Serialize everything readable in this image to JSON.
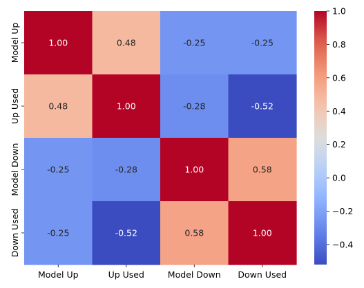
{
  "chart_data": {
    "type": "heatmap",
    "title": "",
    "xlabel": "",
    "ylabel": "",
    "x": [
      "Model Up",
      "Up Used",
      "Model Down",
      "Down Used"
    ],
    "y": [
      "Model Up",
      "Up Used",
      "Model Down",
      "Down Used"
    ],
    "values": [
      [
        1.0,
        0.48,
        -0.25,
        -0.25
      ],
      [
        0.48,
        1.0,
        -0.28,
        -0.52
      ],
      [
        -0.25,
        -0.28,
        1.0,
        0.58
      ],
      [
        -0.25,
        -0.52,
        0.58,
        1.0
      ]
    ],
    "cell_labels": [
      [
        "1.00",
        "0.48",
        "-0.25",
        "-0.25"
      ],
      [
        "0.48",
        "1.00",
        "-0.28",
        "-0.52"
      ],
      [
        "-0.25",
        "-0.28",
        "1.00",
        "0.58"
      ],
      [
        "-0.25",
        "-0.52",
        "0.58",
        "1.00"
      ]
    ],
    "colormap": "coolwarm",
    "vmin": -0.52,
    "vmax": 1.0,
    "colorbar": {
      "ticks": [
        -0.4,
        -0.2,
        0.0,
        0.2,
        0.4,
        0.6,
        0.8,
        1.0
      ],
      "tick_labels": [
        "−0.4",
        "−0.2",
        "0.0",
        "0.2",
        "0.4",
        "0.6",
        "0.8",
        "1.0"
      ],
      "placement": "right"
    },
    "grid": false
  }
}
